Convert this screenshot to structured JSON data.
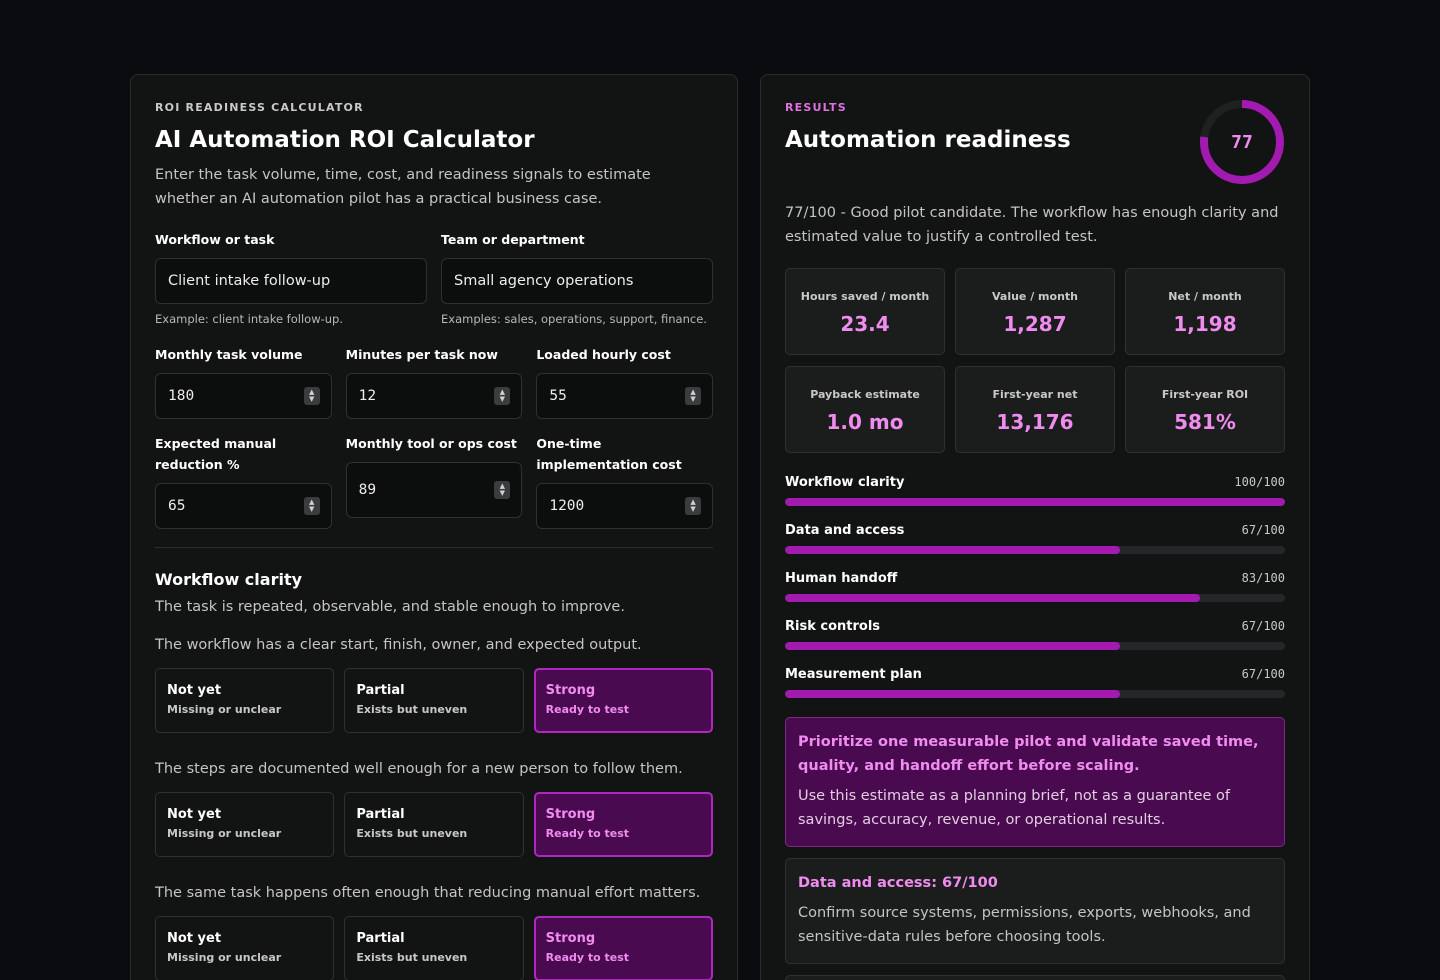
{
  "calculator": {
    "eyebrow": "ROI READINESS CALCULATOR",
    "title": "AI Automation ROI Calculator",
    "intro": "Enter the task volume, time, cost, and readiness signals to estimate whether an AI automation pilot has a practical business case.",
    "fields": {
      "workflow": {
        "label": "Workflow or task",
        "value": "Client intake follow-up",
        "help": "Example: client intake follow-up."
      },
      "team": {
        "label": "Team or department",
        "value": "Small agency operations",
        "help": "Examples: sales, operations, support, finance."
      },
      "volume": {
        "label": "Monthly task volume",
        "value": "180"
      },
      "minutes": {
        "label": "Minutes per task now",
        "value": "12"
      },
      "hourly": {
        "label": "Loaded hourly cost",
        "value": "55"
      },
      "reduction": {
        "label": "Expected manual reduction %",
        "value": "65"
      },
      "tool_cost": {
        "label": "Monthly tool or ops cost",
        "value": "89"
      },
      "impl_cost": {
        "label": "One-time implementation cost",
        "value": "1200"
      }
    },
    "section": {
      "title": "Workflow clarity",
      "description": "The task is repeated, observable, and stable enough to improve.",
      "questions": [
        {
          "text": "The workflow has a clear start, finish, owner, and expected output.",
          "options": [
            {
              "title": "Not yet",
              "sub": "Missing or unclear"
            },
            {
              "title": "Partial",
              "sub": "Exists but uneven"
            },
            {
              "title": "Strong",
              "sub": "Ready to test"
            }
          ],
          "selected": 2
        },
        {
          "text": "The steps are documented well enough for a new person to follow them.",
          "options": [
            {
              "title": "Not yet",
              "sub": "Missing or unclear"
            },
            {
              "title": "Partial",
              "sub": "Exists but uneven"
            },
            {
              "title": "Strong",
              "sub": "Ready to test"
            }
          ],
          "selected": 2
        },
        {
          "text": "The same task happens often enough that reducing manual effort matters.",
          "options": [
            {
              "title": "Not yet",
              "sub": "Missing or unclear"
            },
            {
              "title": "Partial",
              "sub": "Exists but uneven"
            },
            {
              "title": "Strong",
              "sub": "Ready to test"
            }
          ],
          "selected": 2
        }
      ]
    }
  },
  "results": {
    "eyebrow": "RESULTS",
    "title": "Automation readiness",
    "score": 77,
    "score_max": 100,
    "score_label": "77",
    "summary": "77/100 - Good pilot candidate. The workflow has enough clarity and estimated value to justify a controlled test.",
    "metrics": [
      {
        "label": "Hours saved / month",
        "value": "23.4"
      },
      {
        "label": "Value / month",
        "value": "1,287"
      },
      {
        "label": "Net / month",
        "value": "1,198"
      },
      {
        "label": "Payback estimate",
        "value": "1.0 mo"
      },
      {
        "label": "First-year net",
        "value": "13,176"
      },
      {
        "label": "First-year ROI",
        "value": "581%"
      }
    ],
    "bars": [
      {
        "name": "Workflow clarity",
        "score_text": "100/100",
        "score": 100
      },
      {
        "name": "Data and access",
        "score_text": "67/100",
        "score": 67
      },
      {
        "name": "Human handoff",
        "score_text": "83/100",
        "score": 83
      },
      {
        "name": "Risk controls",
        "score_text": "67/100",
        "score": 67
      },
      {
        "name": "Measurement plan",
        "score_text": "67/100",
        "score": 67
      }
    ],
    "advice": {
      "title": "Prioritize one measurable pilot and validate saved time, quality, and handoff effort before scaling.",
      "text": "Use this estimate as a planning brief, not as a guarantee of savings, accuracy, revenue, or operational results."
    },
    "note": {
      "title": "Data and access: 67/100",
      "text": "Confirm source systems, permissions, exports, webhooks, and sensitive-data rules before choosing tools."
    },
    "colors": {
      "accent": "#f08cf0",
      "bar": "#a31ab0",
      "selected_bg": "#4a0a4f",
      "ring_track": "#1f2121"
    }
  }
}
